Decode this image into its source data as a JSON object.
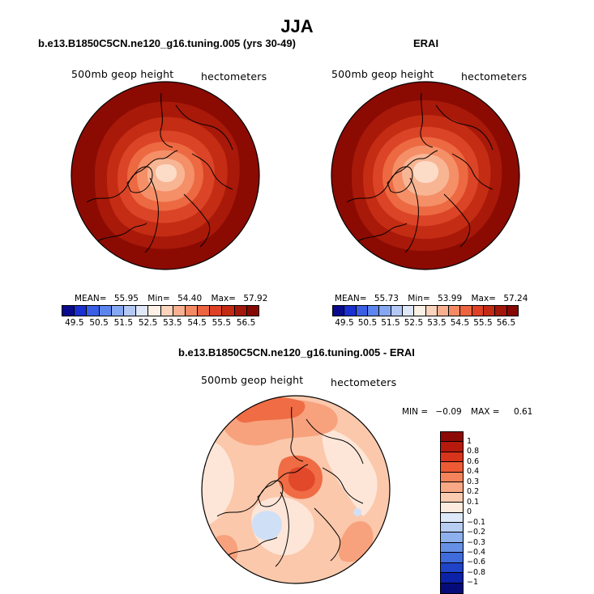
{
  "figure": {
    "title": "JJA",
    "left_panel": {
      "title": "b.e13.B1850C5CN.ne120_g16.tuning.005 (yrs 30-49)",
      "field": "500mb geop height",
      "units": "hectometers",
      "stats": {
        "mean_label": "MEAN=",
        "mean": "55.95",
        "min_label": "Min=",
        "min": "54.40",
        "max_label": "Max=",
        "max": "57.92"
      }
    },
    "right_panel": {
      "title": "ERAI",
      "field": "500mb geop height",
      "units": "hectometers",
      "stats": {
        "mean_label": "MEAN=",
        "mean": "55.73",
        "min_label": "Min=",
        "min": "53.99",
        "max_label": "Max=",
        "max": "57.24"
      }
    },
    "colorbar_abs": {
      "ticks": [
        "49.5",
        "50.5",
        "51.5",
        "52.5",
        "53.5",
        "54.5",
        "55.5",
        "56.5"
      ],
      "colors": [
        "#0a0a8c",
        "#1a2fd0",
        "#3a5ee6",
        "#5c86ee",
        "#86a8f2",
        "#b4c8f6",
        "#dfe8fa",
        "#fdf0e6",
        "#fcd3bd",
        "#f9b090",
        "#f48a63",
        "#ec6440",
        "#de4126",
        "#c42a13",
        "#a3170a",
        "#850902"
      ]
    },
    "bottom_panel": {
      "title": "b.e13.B1850C5CN.ne120_g16.tuning.005 - ERAI",
      "field": "500mb geop height",
      "units": "hectometers",
      "stats": {
        "min_label": "MIN =",
        "min": "−0.09",
        "max_label": "MAX =",
        "max": "0.61"
      }
    },
    "colorbar_diff": {
      "ticks": [
        "1",
        "0.8",
        "0.6",
        "0.4",
        "0.3",
        "0.2",
        "0.1",
        "0",
        "−0.1",
        "−0.2",
        "−0.3",
        "−0.4",
        "−0.6",
        "−0.8",
        "−1"
      ],
      "colors": [
        "#8c0a05",
        "#b51a0c",
        "#d8331b",
        "#ee5a34",
        "#f4825a",
        "#f8a885",
        "#fbcbb0",
        "#fdebdf",
        "#dde8f8",
        "#b7cdf2",
        "#8eb0ec",
        "#6690e6",
        "#3f6bdc",
        "#1f44c8",
        "#0c22a8",
        "#060b7a"
      ]
    },
    "map_colors": {
      "l1": "#8b0b03",
      "l2": "#a81909",
      "l3": "#c42c14",
      "l4": "#db4426",
      "l5": "#ec6942",
      "l6": "#f48f68",
      "l7": "#f8b594",
      "l8": "#fcdcc7",
      "d_bg": "#fbc8ac",
      "d_light": "#fde6d8",
      "d_mid": "#f7a27d",
      "d_strong": "#ef6c45",
      "d_deep": "#e2482a",
      "d_blue": "#cfe0f6"
    }
  }
}
